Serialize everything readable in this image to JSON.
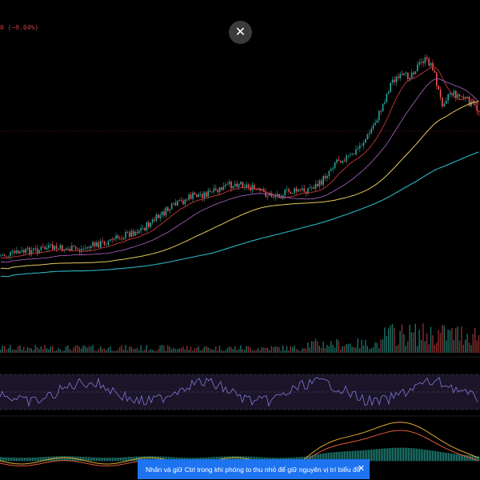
{
  "price_header": {
    "change_text": "0 (−9.04%)"
  },
  "overlay": {
    "close_icon": "close-icon",
    "close_glyph": "✕"
  },
  "hint": {
    "text": "Nhấn và giữ Ctrl trong khi phóng to thu nhỏ để giữ nguyên vị trí biểu đồ",
    "close_glyph": "✕"
  },
  "colors": {
    "background": "#000000",
    "up": "#26a69a",
    "down": "#ef5350",
    "ma_red": "#c8363a",
    "ma_purple": "#9c5bb3",
    "ma_yellow": "#e6c85a",
    "ma_teal": "#2aa6b3",
    "rsi_line": "#7b6cc8",
    "rsi_band": "#1a1528",
    "macd_line": "#e0a82e",
    "signal_line": "#e05a3a",
    "hint_bg": "#1e73f0"
  }
}
